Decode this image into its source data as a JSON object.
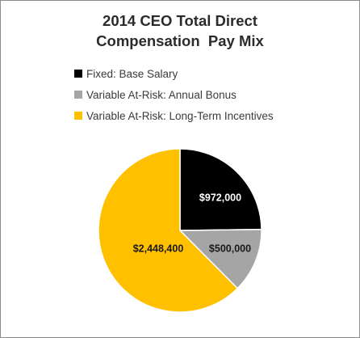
{
  "chart_data": {
    "type": "pie",
    "title_lines": [
      "2014 CEO Total Direct",
      "Compensation  Pay Mix"
    ],
    "legend_position": "top",
    "slices": [
      {
        "name": "Fixed: Base Salary",
        "value": 972000,
        "label": "$972,000",
        "color": "#000000",
        "label_color": "#ffffff"
      },
      {
        "name": "Variable At-Risk: Annual Bonus",
        "value": 500000,
        "label": "$500,000",
        "color": "#a5a5a5",
        "label_color": "#1a1a1a"
      },
      {
        "name": "Variable At-Risk: Long-Term Incentives",
        "value": 2448400,
        "label": "$2,448,400",
        "color": "#ffc000",
        "label_color": "#1a1a1a"
      }
    ]
  }
}
